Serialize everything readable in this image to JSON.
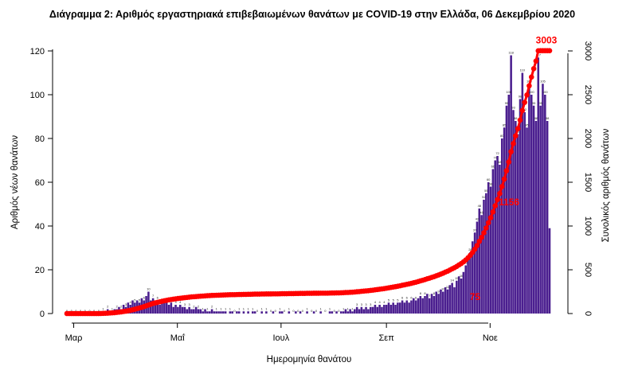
{
  "chart_data": {
    "type": "bar",
    "title": "Διάγραμμα 2: Αριθμός εργαστηριακά επιβεβαιωμένων θανάτων με COVID-19 στην Ελλάδα, 06 Δεκεμβρίου 2020",
    "xlabel": "Ημερομηνία θανάτου",
    "ylabel": "Αριθμός νέων θανάτων",
    "y2label": "Συνολικός αριθμός θανάτων",
    "x_ticks": [
      "Μαρ",
      "Μαΐ",
      "Ιουλ",
      "Σεπ",
      "Νοε"
    ],
    "y_ticks": [
      "0",
      "20",
      "40",
      "60",
      "80",
      "100",
      "120"
    ],
    "y2_ticks": [
      "0",
      "500",
      "1000",
      "1500",
      "2000",
      "2500",
      "3000"
    ],
    "ylim": [
      0,
      120
    ],
    "y2lim": [
      0,
      3000
    ],
    "start_date": "2020-02-26",
    "end_date": "2020-12-06",
    "bar_color": "#4b1f8f",
    "line_color": "#ff0000",
    "annotations": [
      {
        "label": "75",
        "date": "2020-10-25",
        "value": 75
      },
      {
        "label": "1156",
        "date": "2020-11-14",
        "value": 1156
      },
      {
        "label": "3003",
        "date": "2020-12-06",
        "value": 3003
      }
    ],
    "series": [
      {
        "name": "Αριθμός νέων θανάτων",
        "axis": "left",
        "kind": "bar",
        "values": [
          0,
          0,
          0,
          0,
          0,
          0,
          0,
          0,
          0,
          0,
          0,
          0,
          0,
          0,
          0,
          1,
          1,
          0,
          2,
          1,
          1,
          2,
          2,
          3,
          2,
          4,
          3,
          5,
          4,
          6,
          5,
          6,
          5,
          7,
          6,
          8,
          10,
          6,
          7,
          5,
          6,
          4,
          5,
          6,
          5,
          4,
          5,
          3,
          4,
          3,
          4,
          3,
          3,
          2,
          3,
          2,
          2,
          3,
          2,
          2,
          1,
          2,
          1,
          1,
          2,
          1,
          1,
          1,
          1,
          1,
          1,
          0,
          1,
          1,
          0,
          1,
          1,
          0,
          1,
          0,
          1,
          0,
          1,
          1,
          0,
          0,
          1,
          0,
          1,
          0,
          0,
          1,
          0,
          0,
          1,
          1,
          0,
          0,
          1,
          0,
          0,
          1,
          0,
          1,
          0,
          0,
          1,
          0,
          0,
          1,
          0,
          0,
          1,
          0,
          0,
          0,
          1,
          1,
          0,
          1,
          0,
          1,
          1,
          2,
          1,
          2,
          1,
          2,
          3,
          2,
          3,
          2,
          3,
          2,
          3,
          3,
          4,
          3,
          4,
          3,
          4,
          4,
          5,
          4,
          5,
          4,
          5,
          5,
          6,
          5,
          6,
          5,
          6,
          7,
          6,
          7,
          8,
          7,
          8,
          9,
          7,
          9,
          8,
          10,
          9,
          11,
          10,
          12,
          11,
          13,
          14,
          12,
          15,
          17,
          16,
          19,
          22,
          25,
          28,
          33,
          37,
          42,
          48,
          45,
          52,
          55,
          60,
          58,
          66,
          70,
          72,
          68,
          80,
          85,
          95,
          100,
          118,
          93,
          88,
          82,
          98,
          110,
          92,
          85,
          105,
          100,
          95,
          88,
          117,
          95,
          105,
          100,
          88,
          39
        ]
      },
      {
        "name": "Συνολικός αριθμός θανάτων",
        "axis": "right",
        "kind": "line",
        "values": [
          0,
          0,
          0,
          0,
          0,
          0,
          0,
          0,
          0,
          0,
          0,
          0,
          0,
          0,
          0,
          1,
          2,
          3,
          4,
          6,
          8,
          10,
          13,
          16,
          19,
          23,
          27,
          32,
          37,
          43,
          49,
          56,
          63,
          71,
          79,
          88,
          97,
          106,
          115,
          122,
          128,
          134,
          140,
          146,
          151,
          156,
          160,
          164,
          168,
          172,
          175,
          178,
          181,
          184,
          187,
          190,
          192,
          194,
          196,
          198,
          200,
          202,
          204,
          205,
          207,
          208,
          209,
          210,
          211,
          212,
          213,
          214,
          215,
          216,
          216,
          217,
          218,
          218,
          219,
          219,
          220,
          220,
          221,
          222,
          222,
          222,
          223,
          223,
          224,
          224,
          224,
          225,
          225,
          225,
          226,
          227,
          227,
          227,
          228,
          228,
          228,
          229,
          229,
          230,
          230,
          230,
          231,
          231,
          231,
          232,
          232,
          232,
          233,
          233,
          233,
          233,
          234,
          235,
          235,
          236,
          236,
          237,
          238,
          240,
          241,
          243,
          244,
          246,
          249,
          251,
          254,
          256,
          259,
          261,
          264,
          267,
          271,
          274,
          278,
          281,
          285,
          289,
          294,
          298,
          303,
          307,
          312,
          317,
          323,
          328,
          334,
          339,
          345,
          352,
          358,
          365,
          373,
          380,
          388,
          397,
          404,
          413,
          421,
          431,
          440,
          451,
          461,
          473,
          484,
          497,
          511,
          523,
          538,
          555,
          571,
          590,
          612,
          637,
          665,
          698,
          735,
          777,
          825,
          870,
          922,
          977,
          1037,
          1095,
          1161,
          1231,
          1303,
          1371,
          1451,
          1536,
          1631,
          1731,
          1849,
          1942,
          2030,
          2112,
          2210,
          2320,
          2412,
          2497,
          2602,
          2702,
          2797,
          2885,
          3002,
          3003,
          3003,
          3003,
          3003,
          3003
        ]
      }
    ]
  }
}
